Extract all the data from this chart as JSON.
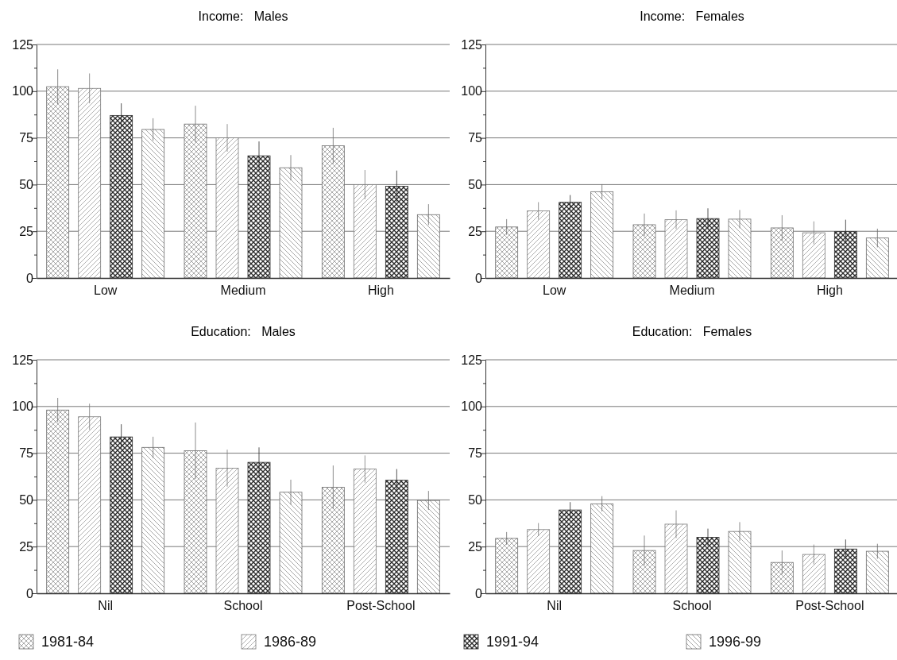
{
  "chart_data": [
    {
      "type": "bar",
      "title": "Income:   Males",
      "categories": [
        "Low",
        "Medium",
        "High"
      ],
      "ylim": [
        0,
        125
      ],
      "yticks": [
        0,
        {
          "value": 12.5,
          "label": null
        },
        25,
        {
          "value": 37.5,
          "label": null
        },
        50,
        {
          "value": 62.5,
          "label": null
        },
        75,
        {
          "value": 87.5,
          "label": null
        },
        100,
        {
          "value": 112.5,
          "label": null
        },
        125
      ],
      "grid": "y",
      "legend": "bottom",
      "series": [
        {
          "name": "1981-84",
          "color": "#6e6e6e",
          "values": [
            102.4,
            82.4,
            70.8
          ],
          "errors": [
            9.3,
            9.8,
            9.6
          ]
        },
        {
          "name": "1986-89",
          "color": "#7a7a7a",
          "values": [
            101.5,
            75,
            50
          ],
          "errors": [
            8,
            7.4,
            7.8
          ]
        },
        {
          "name": "1991-94",
          "color": "#2a2a2a",
          "values": [
            87,
            65.4,
            49.1
          ],
          "errors": [
            6.5,
            7.7,
            8.4
          ]
        },
        {
          "name": "1996-99",
          "color": "#6a6a6a",
          "values": [
            79.5,
            59,
            33.9
          ],
          "errors": [
            6,
            6.8,
            5.6
          ]
        }
      ]
    },
    {
      "type": "bar",
      "title": "Income:   Females",
      "categories": [
        "Low",
        "Medium",
        "High"
      ],
      "ylim": [
        0,
        125
      ],
      "yticks": [
        0,
        {
          "value": 12.5,
          "label": null
        },
        25,
        {
          "value": 37.5,
          "label": null
        },
        50,
        {
          "value": 62.5,
          "label": null
        },
        75,
        {
          "value": 87.5,
          "label": null
        },
        100,
        {
          "value": 112.5,
          "label": null
        },
        125
      ],
      "grid": "y",
      "series": [
        {
          "color": "#6e6e6e",
          "values": [
            27.3,
            28.5,
            26.8
          ],
          "errors": [
            4.2,
            6,
            6.8
          ]
        },
        {
          "color": "#7a7a7a",
          "values": [
            35.9,
            31.2,
            24.2
          ],
          "errors": [
            4.7,
            5,
            6.1
          ]
        },
        {
          "color": "#2a2a2a",
          "values": [
            40.5,
            31.8,
            24.8
          ],
          "errors": [
            3.9,
            5.5,
            6.4
          ]
        },
        {
          "color": "#6a6a6a",
          "values": [
            46.2,
            31.5,
            21.4
          ],
          "errors": [
            4,
            4.9,
            5
          ]
        }
      ]
    },
    {
      "type": "bar",
      "title": "Education:   Males",
      "categories": [
        "Nil",
        "School",
        "Post-School"
      ],
      "ylim": [
        0,
        125
      ],
      "yticks": [
        0,
        {
          "value": 12.5,
          "label": null
        },
        25,
        {
          "value": 37.5,
          "label": null
        },
        50,
        {
          "value": 62.5,
          "label": null
        },
        75,
        {
          "value": 87.5,
          "label": null
        },
        100,
        {
          "value": 112.5,
          "label": null
        },
        125
      ],
      "grid": "y",
      "series": [
        {
          "color": "#6e6e6e",
          "values": [
            98.1,
            76.3,
            56.8
          ],
          "errors": [
            6.5,
            15.1,
            11.6
          ]
        },
        {
          "color": "#7a7a7a",
          "values": [
            94.5,
            67,
            66.5
          ],
          "errors": [
            7,
            9.9,
            7.3
          ]
        },
        {
          "color": "#2a2a2a",
          "values": [
            83.7,
            70.1,
            60.5
          ],
          "errors": [
            6.8,
            8,
            6
          ]
        },
        {
          "color": "#6a6a6a",
          "values": [
            78.1,
            54.1,
            49.7
          ],
          "errors": [
            5.7,
            6.7,
            5.1
          ]
        }
      ]
    },
    {
      "type": "bar",
      "title": "Education:   Females",
      "categories": [
        "Nil",
        "School",
        "Post-School"
      ],
      "ylim": [
        0,
        125
      ],
      "yticks": [
        0,
        {
          "value": 12.5,
          "label": null
        },
        25,
        {
          "value": 37.5,
          "label": null
        },
        50,
        {
          "value": 62.5,
          "label": null
        },
        75,
        {
          "value": 87.5,
          "label": null
        },
        100,
        {
          "value": 112.5,
          "label": null
        },
        125
      ],
      "grid": "y",
      "series": [
        {
          "color": "#6e6e6e",
          "values": [
            29.4,
            22.9,
            16.5
          ],
          "errors": [
            3.4,
            8,
            6.4
          ]
        },
        {
          "color": "#7a7a7a",
          "values": [
            34.1,
            37,
            20.8
          ],
          "errors": [
            3.5,
            7.4,
            5.3
          ]
        },
        {
          "color": "#2a2a2a",
          "values": [
            44.6,
            30,
            23.7
          ],
          "errors": [
            4.2,
            4.6,
            5.1
          ]
        },
        {
          "color": "#6a6a6a",
          "values": [
            47.9,
            33.1,
            22.5
          ],
          "errors": [
            4.1,
            5,
            4
          ]
        }
      ]
    }
  ]
}
